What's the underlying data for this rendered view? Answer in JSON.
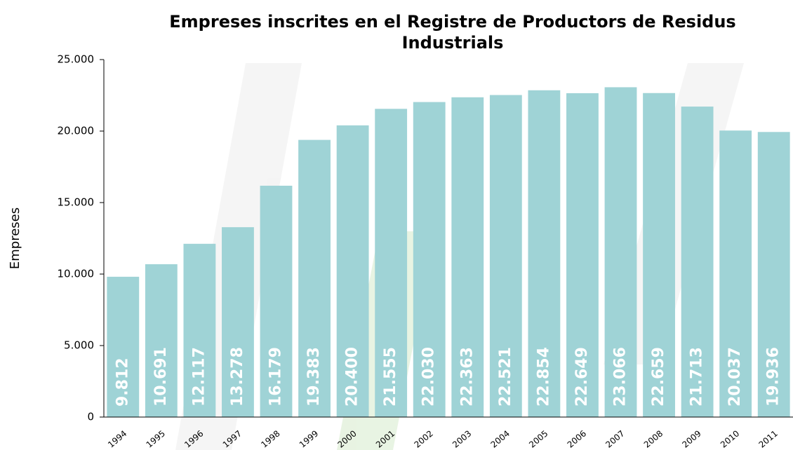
{
  "chart_data": {
    "type": "bar",
    "title": "Empreses inscrites en el Registre de Productors de Residus Industrials",
    "y_label": "Empreses",
    "categories": [
      "1994",
      "1995",
      "1996",
      "1997",
      "1998",
      "1999",
      "2000",
      "2001",
      "2002",
      "2003",
      "2004",
      "2005",
      "2006",
      "2007",
      "2008",
      "2009",
      "2010",
      "2011"
    ],
    "values": [
      9812,
      10691,
      12117,
      13278,
      16179,
      19383,
      20400,
      21555,
      22030,
      22363,
      22521,
      22854,
      22649,
      23066,
      22659,
      21713,
      20037,
      19936
    ],
    "value_labels": [
      "9.812",
      "10.691",
      "12.117",
      "13.278",
      "16.179",
      "19.383",
      "20.400",
      "21.555",
      "22.030",
      "22.363",
      "22.521",
      "22.854",
      "22.649",
      "23.066",
      "22.659",
      "21.713",
      "20.037",
      "19.936"
    ],
    "color": "#9fd3d6",
    "ylim": [
      0,
      25000
    ],
    "yticks": [
      0,
      {
        "value": 5000,
        "label": "5.000"
      },
      {
        "value": 10000,
        "label": "10.000"
      },
      {
        "value": 15000,
        "label": "15.000"
      },
      {
        "value": 20000,
        "label": "20.000"
      },
      {
        "value": 25000,
        "label": "25.000"
      }
    ]
  }
}
